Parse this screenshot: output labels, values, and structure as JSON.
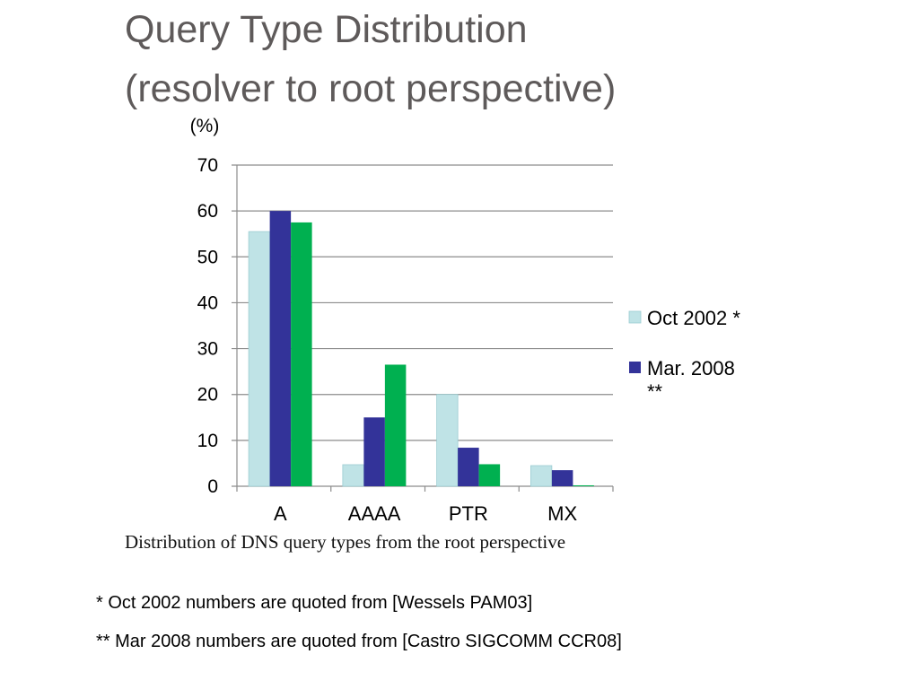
{
  "slide": {
    "title_line1": "Query Type Distribution",
    "title_line2": "(resolver to root perspective)",
    "caption": "Distribution of DNS query types from the root perspective",
    "footnote1": "* Oct 2002 numbers are quoted from [Wessels PAM03]",
    "footnote2": "** Mar 2008 numbers are quoted from [Castro SIGCOMM CCR08]"
  },
  "chart_data": {
    "type": "bar",
    "unit_label": "(%)",
    "categories": [
      "A",
      "AAAA",
      "PTR",
      "MX"
    ],
    "series": [
      {
        "name": "Oct 2002 *",
        "color": "#bfe3e6",
        "values": [
          55.5,
          4.7,
          20.0,
          4.5
        ]
      },
      {
        "name": "Mar. 2008 **",
        "color": "#333399",
        "values": [
          60.0,
          15.0,
          8.4,
          3.5
        ]
      },
      {
        "color": "#00b050",
        "values": [
          57.5,
          26.5,
          4.8,
          0.2
        ]
      }
    ],
    "legend_lines": [
      [
        "Oct 2002 *"
      ],
      [
        "Mar. 2008",
        "**"
      ]
    ],
    "ylim": [
      0,
      70
    ],
    "yticks": [
      0,
      10,
      20,
      30,
      40,
      50,
      60,
      70
    ],
    "grid": true,
    "legend_position": "right"
  }
}
